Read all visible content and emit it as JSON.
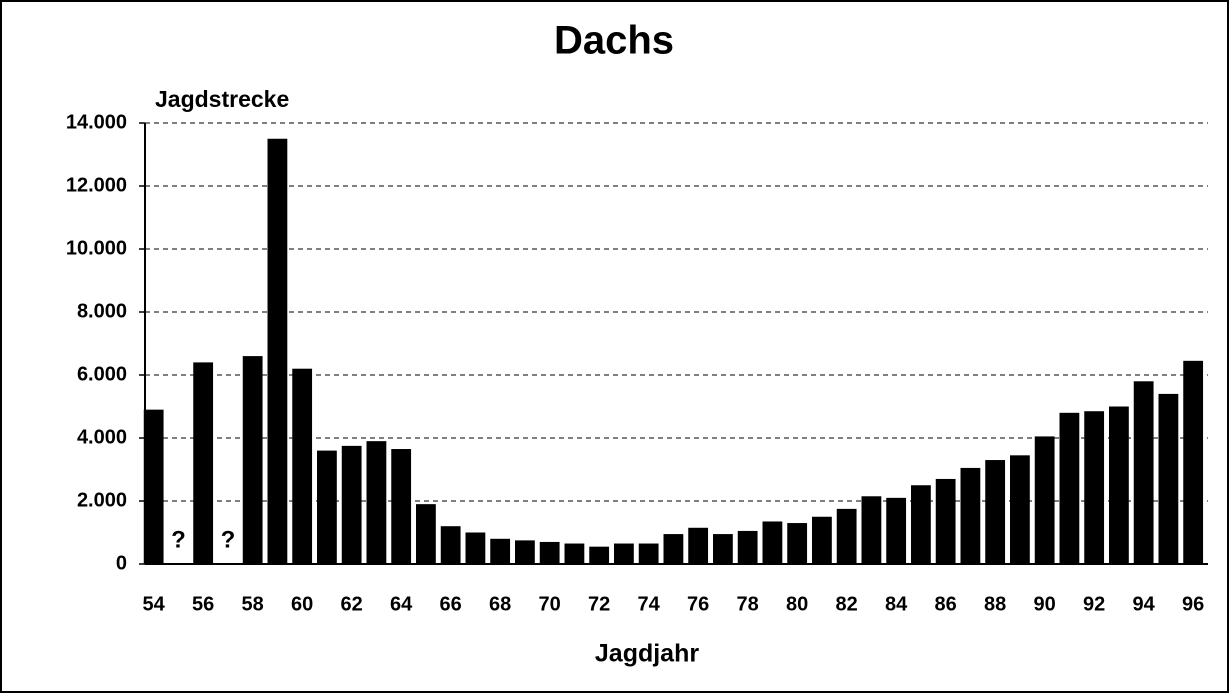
{
  "chart_data": {
    "type": "bar",
    "title": "Dachs",
    "y_label": "Jagdstrecke",
    "x_label": "Jagdjahr",
    "x": [
      54,
      55,
      56,
      57,
      58,
      59,
      60,
      61,
      62,
      63,
      64,
      65,
      66,
      67,
      68,
      69,
      70,
      71,
      72,
      73,
      74,
      75,
      76,
      77,
      78,
      79,
      80,
      81,
      82,
      83,
      84,
      85,
      86,
      87,
      88,
      89,
      90,
      91,
      92,
      93,
      94,
      95,
      96
    ],
    "values": [
      4900,
      null,
      6400,
      null,
      6600,
      13500,
      6200,
      3600,
      3750,
      3900,
      3650,
      1900,
      1200,
      1000,
      800,
      750,
      700,
      650,
      550,
      650,
      650,
      950,
      1150,
      950,
      1050,
      1350,
      1300,
      1500,
      1750,
      2150,
      2100,
      2500,
      2700,
      3050,
      3300,
      3450,
      4050,
      4800,
      4850,
      5000,
      5800,
      5400,
      6450
    ],
    "color": "#000000",
    "xlim": [
      53.65,
      96.6
    ],
    "xticks": [
      54,
      56,
      58,
      60,
      62,
      64,
      66,
      68,
      70,
      72,
      74,
      76,
      78,
      80,
      82,
      84,
      86,
      88,
      90,
      92,
      94,
      96
    ],
    "ylim": [
      0,
      14000
    ],
    "yticks": [
      0,
      {
        "value": 2000,
        "label": "2.000"
      },
      {
        "value": 4000,
        "label": "4.000"
      },
      {
        "value": 6000,
        "label": "6.000"
      },
      {
        "value": 8000,
        "label": "8.000"
      },
      {
        "value": 10000,
        "label": "10.000"
      },
      {
        "value": 12000,
        "label": "12.000"
      },
      {
        "value": 14000,
        "label": "14.000"
      }
    ],
    "grid": true,
    "annotations": [
      {
        "text": "?",
        "x": 55
      },
      {
        "text": "?",
        "x": 57
      }
    ]
  }
}
